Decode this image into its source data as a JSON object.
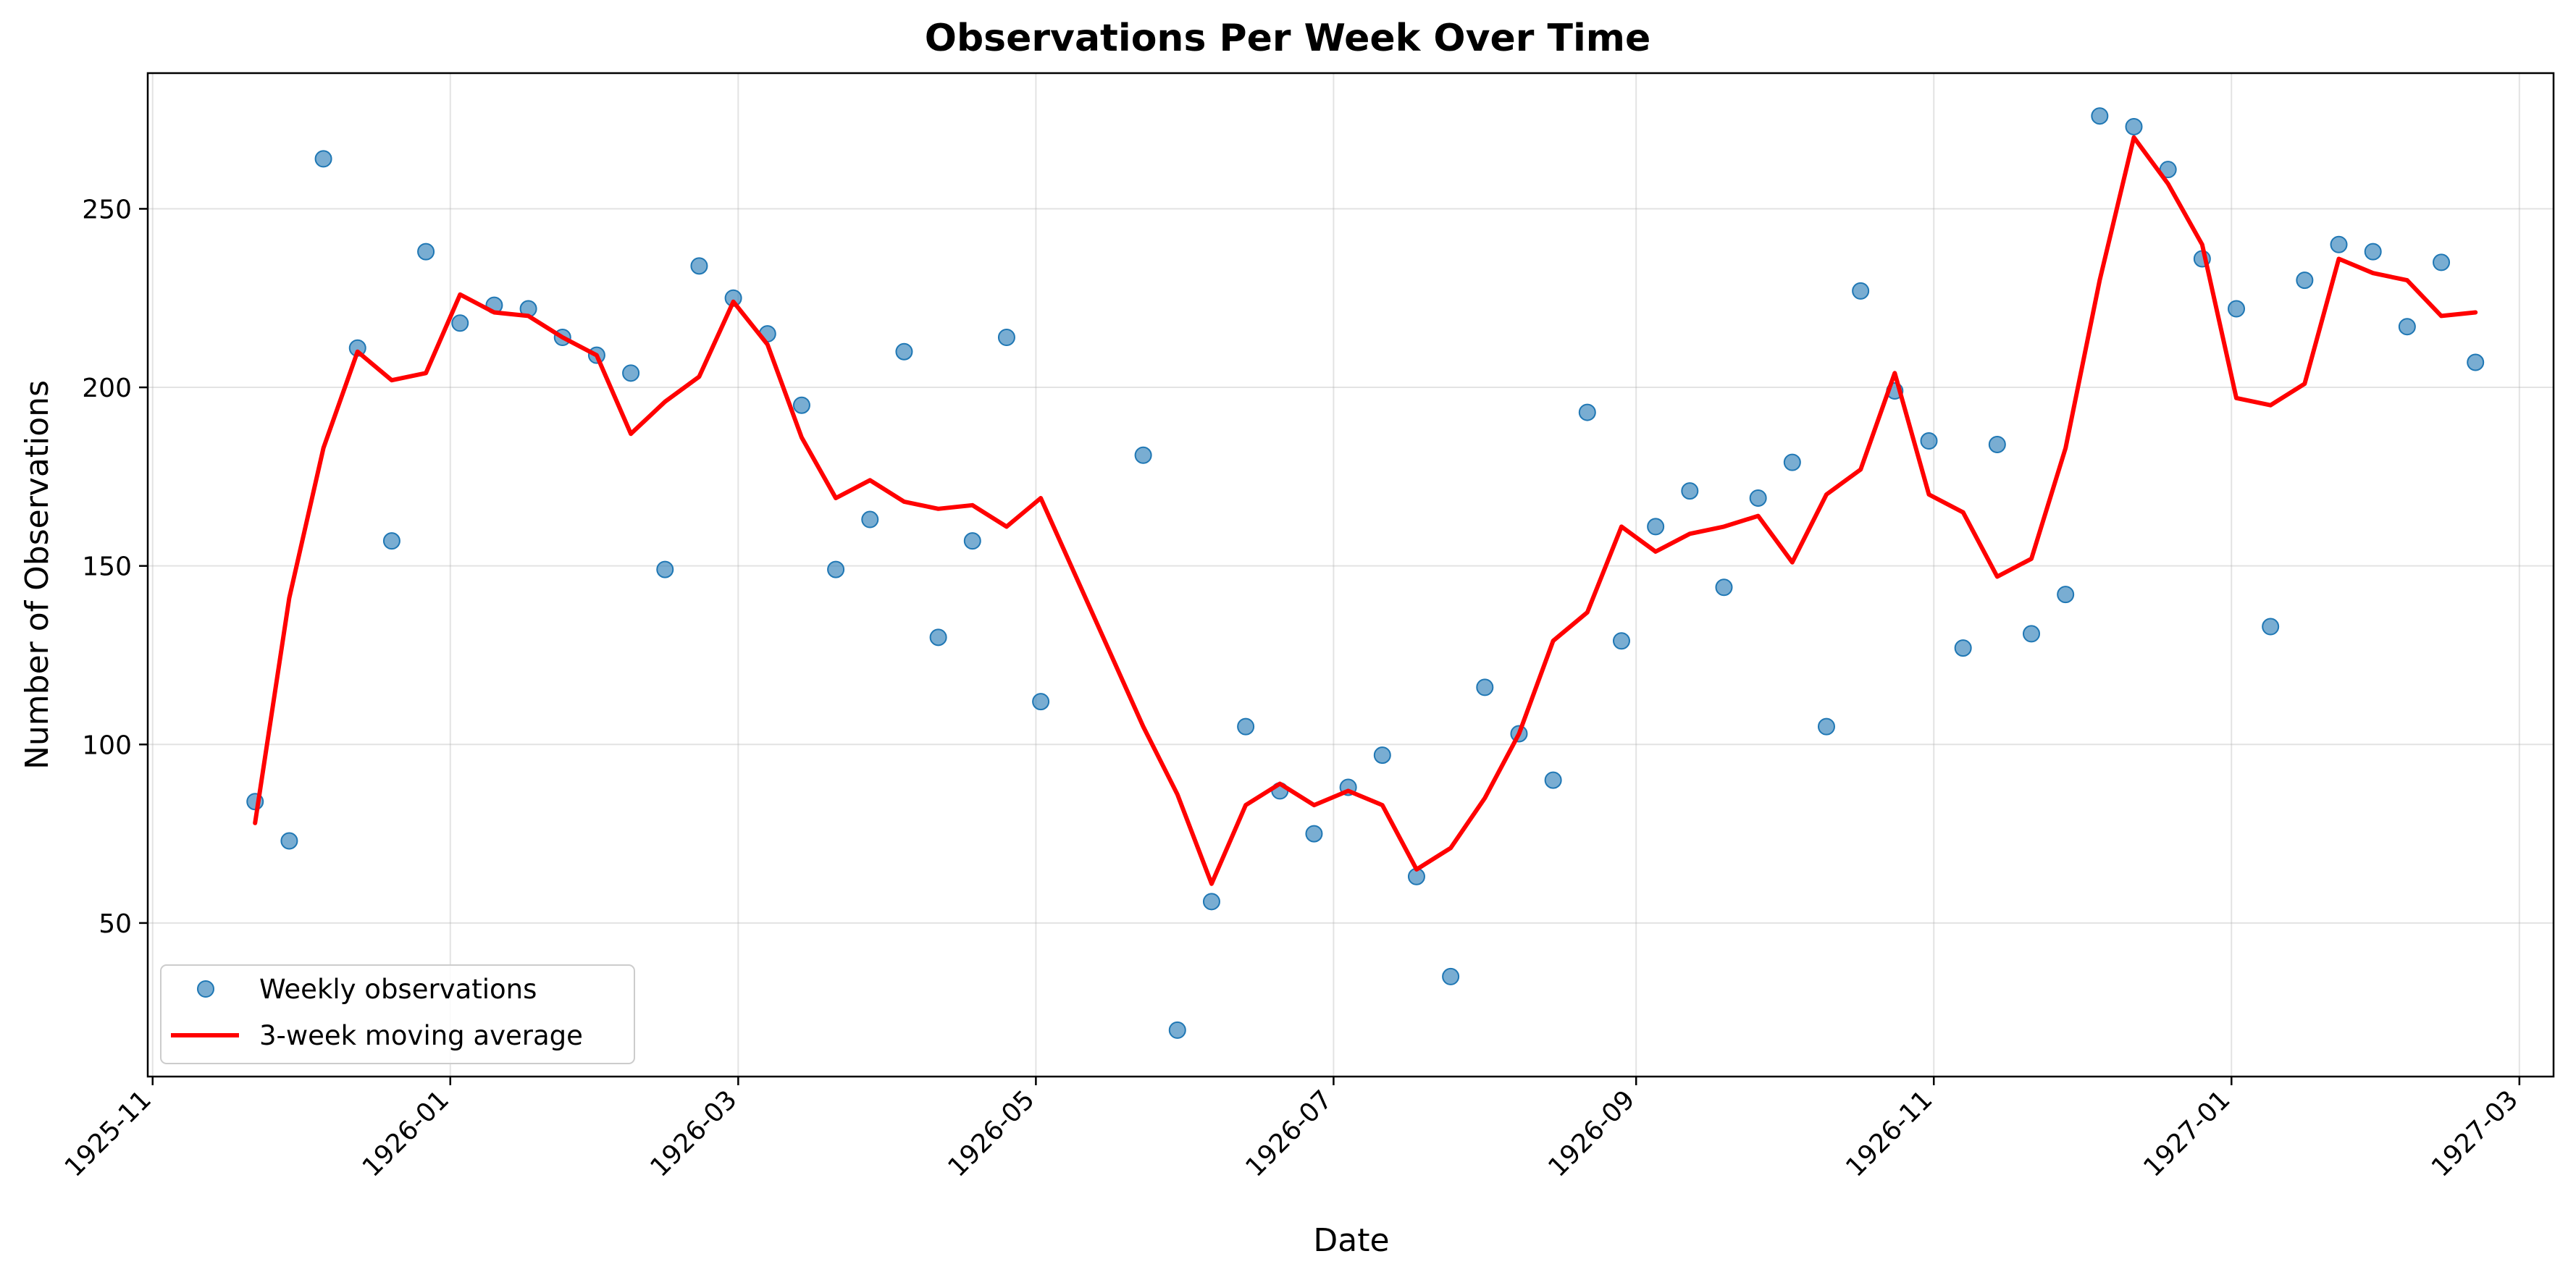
{
  "chart_data": {
    "type": "scatter",
    "title": "Observations Per Week Over Time",
    "xlabel": "Date",
    "ylabel": "Number of Observations",
    "x_range": [
      "1925-10-31",
      "1927-03-08"
    ],
    "ylim": [
      7,
      288
    ],
    "x_ticks": [
      "1925-11",
      "1926-01",
      "1926-03",
      "1926-05",
      "1926-07",
      "1926-09",
      "1926-11",
      "1927-01",
      "1927-03"
    ],
    "y_ticks": [
      50,
      100,
      150,
      200,
      250
    ],
    "grid": true,
    "legend_position": "lower-left",
    "series": [
      {
        "name": "Weekly observations",
        "kind": "scatter",
        "color": "#1f77b4",
        "x": [
          "1925-11-22",
          "1925-11-29",
          "1925-12-06",
          "1925-12-13",
          "1925-12-20",
          "1925-12-27",
          "1926-01-03",
          "1926-01-10",
          "1926-01-17",
          "1926-01-24",
          "1926-01-31",
          "1926-02-07",
          "1926-02-14",
          "1926-02-21",
          "1926-02-28",
          "1926-03-07",
          "1926-03-14",
          "1926-03-21",
          "1926-03-28",
          "1926-04-04",
          "1926-04-11",
          "1926-04-18",
          "1926-04-25",
          "1926-05-02",
          "1926-05-23",
          "1926-05-30",
          "1926-06-06",
          "1926-06-13",
          "1926-06-20",
          "1926-06-27",
          "1926-07-04",
          "1926-07-11",
          "1926-07-18",
          "1926-07-25",
          "1926-08-01",
          "1926-08-08",
          "1926-08-15",
          "1926-08-22",
          "1926-08-29",
          "1926-09-05",
          "1926-09-12",
          "1926-09-19",
          "1926-09-26",
          "1926-10-03",
          "1926-10-10",
          "1926-10-17",
          "1926-10-24",
          "1926-10-31",
          "1926-11-07",
          "1926-11-14",
          "1926-11-21",
          "1926-11-28",
          "1926-12-05",
          "1926-12-12",
          "1926-12-19",
          "1926-12-26",
          "1927-01-02",
          "1927-01-09",
          "1927-01-16",
          "1927-01-23",
          "1927-01-30",
          "1927-02-06",
          "1927-02-13",
          "1927-02-20"
        ],
        "values": [
          84,
          73,
          264,
          211,
          157,
          238,
          218,
          223,
          222,
          214,
          209,
          204,
          149,
          234,
          225,
          215,
          195,
          149,
          163,
          210,
          130,
          157,
          214,
          112,
          181,
          20,
          56,
          105,
          87,
          75,
          88,
          97,
          63,
          35,
          116,
          103,
          90,
          193,
          129,
          161,
          171,
          144,
          169,
          179,
          105,
          227,
          199,
          185,
          127,
          184,
          131,
          142,
          276,
          273,
          261,
          236,
          222,
          133,
          230,
          240,
          238,
          217,
          235,
          207
        ]
      },
      {
        "name": "3-week moving average",
        "kind": "line",
        "color": "#ff0000",
        "x": [
          "1925-11-22",
          "1925-11-29",
          "1925-12-06",
          "1925-12-13",
          "1925-12-20",
          "1925-12-27",
          "1926-01-03",
          "1926-01-10",
          "1926-01-17",
          "1926-01-24",
          "1926-01-31",
          "1926-02-07",
          "1926-02-14",
          "1926-02-21",
          "1926-02-28",
          "1926-03-07",
          "1926-03-14",
          "1926-03-21",
          "1926-03-28",
          "1926-04-04",
          "1926-04-11",
          "1926-04-18",
          "1926-04-25",
          "1926-05-02",
          "1926-05-23",
          "1926-05-30",
          "1926-06-06",
          "1926-06-13",
          "1926-06-20",
          "1926-06-27",
          "1926-07-04",
          "1926-07-11",
          "1926-07-18",
          "1926-07-25",
          "1926-08-01",
          "1926-08-08",
          "1926-08-15",
          "1926-08-22",
          "1926-08-29",
          "1926-09-05",
          "1926-09-12",
          "1926-09-19",
          "1926-09-26",
          "1926-10-03",
          "1926-10-10",
          "1926-10-17",
          "1926-10-24",
          "1926-10-31",
          "1926-11-07",
          "1926-11-14",
          "1926-11-21",
          "1926-11-28",
          "1926-12-05",
          "1926-12-12",
          "1926-12-19",
          "1926-12-26",
          "1927-01-02",
          "1927-01-09",
          "1927-01-16",
          "1927-01-23",
          "1927-01-30",
          "1927-02-06",
          "1927-02-13",
          "1927-02-20"
        ],
        "values": [
          78,
          141,
          183,
          210,
          202,
          204,
          226,
          221,
          220,
          214,
          209,
          187,
          196,
          203,
          224,
          212,
          186,
          169,
          174,
          168,
          166,
          167,
          161,
          169,
          105,
          86,
          61,
          83,
          89,
          83,
          87,
          83,
          65,
          71,
          85,
          103,
          129,
          137,
          161,
          154,
          159,
          161,
          164,
          151,
          170,
          177,
          204,
          170,
          165,
          147,
          152,
          183,
          230,
          270,
          257,
          240,
          197,
          195,
          201,
          236,
          232,
          230,
          220,
          221
        ]
      }
    ]
  }
}
